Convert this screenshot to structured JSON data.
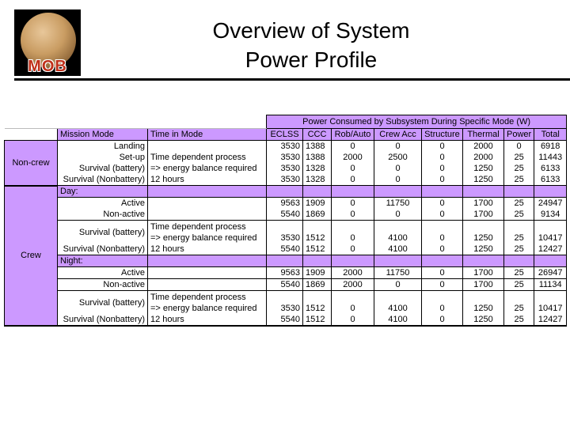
{
  "logo": {
    "text": "MOB"
  },
  "title": {
    "line1": "Overview of System",
    "line2": "Power Profile"
  },
  "table": {
    "super_header": "Power Consumed by Subsystem During Specific Mode (W)",
    "headers": [
      "Mission Mode",
      "Time in Mode",
      "ECLSS",
      "CCC",
      "Rob/Auto",
      "Crew Acc",
      "Structure",
      "Thermal",
      "Power",
      "Total"
    ],
    "colors": {
      "header": "#cc99ff"
    },
    "groups": {
      "noncrew": "Non-crew",
      "crew": "Crew"
    },
    "noncrew_rows": [
      {
        "mode": "Landing",
        "time": "",
        "v": [
          "3530",
          "1388",
          "0",
          "0",
          "0",
          "2000",
          "0",
          "6918"
        ]
      },
      {
        "mode": "Set-up",
        "time": "Time dependent process",
        "v": [
          "3530",
          "1388",
          "2000",
          "2500",
          "0",
          "2000",
          "25",
          "11443"
        ]
      },
      {
        "mode": "Survival (battery)",
        "time": "=> energy balance required",
        "v": [
          "3530",
          "1328",
          "0",
          "0",
          "0",
          "1250",
          "25",
          "6133"
        ]
      },
      {
        "mode": "Survival (Nonbattery)",
        "time": "12 hours",
        "v": [
          "3530",
          "1328",
          "0",
          "0",
          "0",
          "1250",
          "25",
          "6133"
        ]
      }
    ],
    "day_label": "Day:",
    "day_rows": [
      {
        "mode": "Active",
        "time": "",
        "v": [
          "9563",
          "1909",
          "0",
          "11750",
          "0",
          "1700",
          "25",
          "24947"
        ]
      },
      {
        "mode": "Non-active",
        "time": "",
        "v": [
          "5540",
          "1869",
          "0",
          "0",
          "0",
          "1700",
          "25",
          "9134"
        ]
      },
      {
        "mode": "Survival (battery)",
        "time": "Time dependent process",
        "time2": "=> energy balance required",
        "v": [
          "3530",
          "1512",
          "0",
          "4100",
          "0",
          "1250",
          "25",
          "10417"
        ]
      },
      {
        "mode": "Survival (Nonbattery)",
        "time": "12 hours",
        "v": [
          "5540",
          "1512",
          "0",
          "4100",
          "0",
          "1250",
          "25",
          "12427"
        ]
      }
    ],
    "night_label": "Night:",
    "night_rows": [
      {
        "mode": "Active",
        "time": "",
        "v": [
          "9563",
          "1909",
          "2000",
          "11750",
          "0",
          "1700",
          "25",
          "26947"
        ]
      },
      {
        "mode": "Non-active",
        "time": "",
        "v": [
          "5540",
          "1869",
          "2000",
          "0",
          "0",
          "1700",
          "25",
          "11134"
        ]
      },
      {
        "mode": "Survival (battery)",
        "time": "Time dependent process",
        "time2": "=> energy balance required",
        "v": [
          "3530",
          "1512",
          "0",
          "4100",
          "0",
          "1250",
          "25",
          "10417"
        ]
      },
      {
        "mode": "Survival (Nonbattery)",
        "time": "12 hours",
        "v": [
          "5540",
          "1512",
          "0",
          "4100",
          "0",
          "1250",
          "25",
          "12427"
        ]
      }
    ]
  }
}
